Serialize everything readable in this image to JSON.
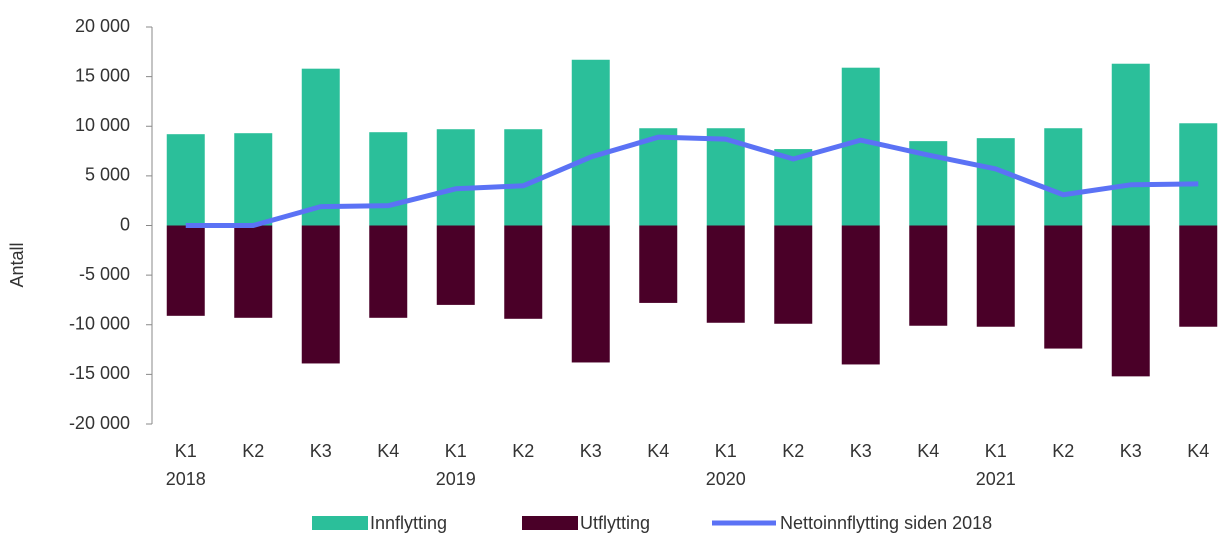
{
  "chart_data": {
    "type": "bar_line",
    "y_label": "Antall",
    "categories": [
      "K1",
      "K2",
      "K3",
      "K4",
      "K1",
      "K2",
      "K3",
      "K4",
      "K1",
      "K2",
      "K3",
      "K4",
      "K1",
      "K2",
      "K3",
      "K4"
    ],
    "years": [
      "2018",
      null,
      null,
      null,
      "2019",
      null,
      null,
      null,
      "2020",
      null,
      null,
      null,
      "2021",
      null,
      null,
      null
    ],
    "series": [
      {
        "name": "Innflytting",
        "type": "bar",
        "color": "#2bbf9a",
        "values": [
          9200,
          9300,
          15800,
          9400,
          9700,
          9700,
          16700,
          9800,
          9800,
          7700,
          15900,
          8500,
          8800,
          9800,
          16300,
          10300
        ]
      },
      {
        "name": "Utflytting",
        "type": "bar",
        "color": "#4a0028",
        "values": [
          -9100,
          -9300,
          -13900,
          -9300,
          -8000,
          -9400,
          -13800,
          -7800,
          -9800,
          -9900,
          -14000,
          -10100,
          -10200,
          -12400,
          -15200,
          -10200
        ]
      },
      {
        "name": "Nettoinnflytting siden 2018",
        "type": "line",
        "color": "#5b72f5",
        "values": [
          0,
          0,
          1900,
          2000,
          3700,
          4000,
          6900,
          8900,
          8700,
          6700,
          8600,
          7100,
          5700,
          3100,
          4100,
          4200
        ]
      }
    ],
    "ylim": [
      -20000,
      20000
    ],
    "yticks": [
      {
        "value": -20000,
        "label": "-20 000"
      },
      {
        "value": -15000,
        "label": "-15 000"
      },
      {
        "value": -10000,
        "label": "-10 000"
      },
      {
        "value": -5000,
        "label": "-5 000"
      },
      0,
      {
        "value": 5000,
        "label": "5 000"
      },
      {
        "value": 10000,
        "label": "10 000"
      },
      {
        "value": 15000,
        "label": "15 000"
      },
      {
        "value": 20000,
        "label": "20 000"
      }
    ],
    "legend": "bottom"
  }
}
